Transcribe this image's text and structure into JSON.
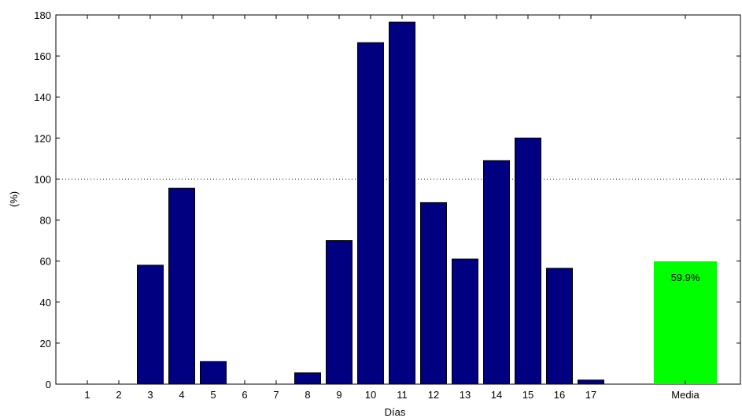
{
  "chart_data": {
    "type": "bar",
    "title": "",
    "xlabel": "Días",
    "ylabel": "(%)",
    "ylim": [
      0,
      180
    ],
    "yticks": [
      0,
      20,
      40,
      60,
      80,
      100,
      120,
      140,
      160,
      180
    ],
    "grid": false,
    "reference_line": {
      "y": 100,
      "style": "dotted"
    },
    "categories": [
      "1",
      "2",
      "3",
      "4",
      "5",
      "6",
      "7",
      "8",
      "9",
      "10",
      "11",
      "12",
      "13",
      "14",
      "15",
      "16",
      "17"
    ],
    "values": [
      0,
      0,
      58,
      95.5,
      11,
      0,
      0,
      5.5,
      70,
      166.5,
      176.5,
      88.5,
      61,
      109,
      120,
      56.5,
      2
    ],
    "bar_color": "#000080",
    "mean_bar": {
      "label": "Media",
      "value": 59.9,
      "value_label": "59.9%",
      "color": "#00ff00"
    }
  }
}
